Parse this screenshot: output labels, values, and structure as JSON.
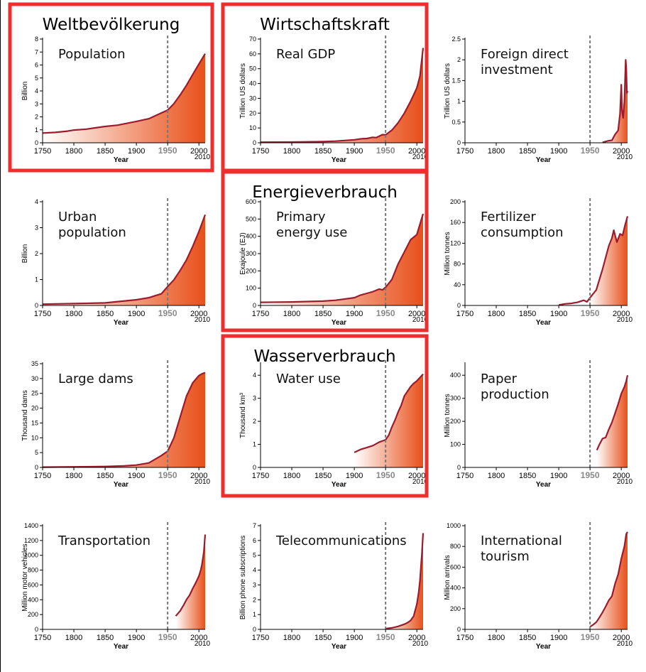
{
  "year_line": "1950",
  "end_label": "2010",
  "x_title": "Year",
  "x_ticks": [
    "1750",
    "1800",
    "1850",
    "1900",
    "1950",
    "2000"
  ],
  "colors": {
    "line": "#9b1c2c",
    "fill_dark": "#e8501a",
    "fill_light": "#ffffff",
    "highlight": "#ef2d2d",
    "dash": "#777777"
  },
  "highlights": [
    {
      "title": "Weltbevölkerung",
      "covers": [
        0
      ]
    },
    {
      "title": "Wirtschaftskraft",
      "covers": [
        1
      ]
    },
    {
      "title": "Energieverbrauch",
      "covers": [
        4
      ]
    },
    {
      "title": "Wasserverbrauch",
      "covers": [
        7
      ]
    }
  ],
  "chart_data": [
    {
      "type": "area",
      "title": [
        "Population"
      ],
      "ylabel": "Billion",
      "ylim": [
        0,
        8
      ],
      "yticks": [
        0,
        1,
        2,
        3,
        4,
        5,
        6,
        7,
        8
      ],
      "x": [
        1750,
        1770,
        1790,
        1800,
        1820,
        1850,
        1870,
        1900,
        1920,
        1940,
        1950,
        1960,
        1970,
        1980,
        1990,
        2000,
        2010
      ],
      "y": [
        0.75,
        0.8,
        0.9,
        0.98,
        1.05,
        1.26,
        1.36,
        1.65,
        1.86,
        2.3,
        2.52,
        3.02,
        3.69,
        4.43,
        5.26,
        6.07,
        6.87
      ],
      "fill_from": 1750
    },
    {
      "type": "area",
      "title": [
        "Real GDP"
      ],
      "ylabel": "Trillion US dollars",
      "ylim": [
        0,
        70
      ],
      "yticks": [
        0,
        10,
        20,
        30,
        40,
        50,
        60,
        70
      ],
      "x": [
        1750,
        1800,
        1850,
        1870,
        1900,
        1913,
        1920,
        1929,
        1935,
        1940,
        1945,
        1950,
        1960,
        1970,
        1980,
        1990,
        2000,
        2005,
        2010
      ],
      "y": [
        0.4,
        0.5,
        0.8,
        1.1,
        2.0,
        2.8,
        2.9,
        3.7,
        3.5,
        4.5,
        5.5,
        5.3,
        8.5,
        13.5,
        20,
        28,
        37,
        45,
        64
      ],
      "fill_from": 1750
    },
    {
      "type": "area",
      "title": [
        "Foreign direct",
        "investment"
      ],
      "ylabel": "Trillion US dollars",
      "ylim": [
        0,
        2.5
      ],
      "yticks": [
        0,
        0.5,
        1,
        1.5,
        2,
        2.5
      ],
      "x": [
        1970,
        1975,
        1980,
        1985,
        1990,
        1995,
        1998,
        2000,
        2001,
        2003,
        2005,
        2007,
        2008,
        2009,
        2010
      ],
      "y": [
        0.01,
        0.03,
        0.05,
        0.06,
        0.2,
        0.3,
        0.7,
        1.4,
        0.8,
        0.6,
        1.0,
        2.0,
        1.8,
        1.2,
        1.25
      ],
      "fill_from": 1950
    },
    {
      "type": "area",
      "title": [
        "Urban",
        "population"
      ],
      "ylabel": "Billion",
      "ylim": [
        0,
        4
      ],
      "yticks": [
        0,
        1,
        2,
        3,
        4
      ],
      "x": [
        1750,
        1800,
        1850,
        1900,
        1920,
        1940,
        1950,
        1960,
        1970,
        1980,
        1990,
        2000,
        2010
      ],
      "y": [
        0.05,
        0.07,
        0.1,
        0.22,
        0.3,
        0.45,
        0.73,
        0.99,
        1.35,
        1.75,
        2.27,
        2.85,
        3.5
      ],
      "fill_from": 1750
    },
    {
      "type": "area",
      "title": [
        "Primary",
        "energy use"
      ],
      "ylabel": "Exajoule (EJ)",
      "ylim": [
        0,
        600
      ],
      "yticks": [
        0,
        100,
        200,
        300,
        400,
        500,
        600
      ],
      "x": [
        1750,
        1800,
        1850,
        1870,
        1900,
        1910,
        1920,
        1930,
        1940,
        1945,
        1950,
        1960,
        1970,
        1980,
        1990,
        2000,
        2010
      ],
      "y": [
        18,
        20,
        25,
        30,
        45,
        60,
        70,
        80,
        95,
        90,
        105,
        150,
        240,
        310,
        380,
        410,
        530
      ],
      "fill_from": 1750
    },
    {
      "type": "area",
      "title": [
        "Fertilizer",
        "consumption"
      ],
      "ylabel": "Million tonnes",
      "ylim": [
        0,
        200
      ],
      "yticks": [
        0,
        40,
        80,
        120,
        160,
        200
      ],
      "x": [
        1900,
        1910,
        1920,
        1930,
        1940,
        1945,
        1950,
        1960,
        1970,
        1980,
        1985,
        1988,
        1993,
        1998,
        2002,
        2006,
        2010
      ],
      "y": [
        1,
        3,
        4,
        6,
        10,
        7,
        15,
        30,
        70,
        115,
        130,
        145,
        122,
        138,
        135,
        155,
        172
      ],
      "fill_from": 1950
    },
    {
      "type": "area",
      "title": [
        "Large dams"
      ],
      "ylabel": "Thousand dams",
      "ylim": [
        0,
        35
      ],
      "yticks": [
        0,
        5,
        10,
        15,
        20,
        25,
        30,
        35
      ],
      "x": [
        1750,
        1800,
        1850,
        1880,
        1900,
        1920,
        1940,
        1950,
        1960,
        1970,
        1980,
        1990,
        2000,
        2005,
        2010
      ],
      "y": [
        0.1,
        0.2,
        0.3,
        0.5,
        0.8,
        1.5,
        4.0,
        5.5,
        10,
        17,
        24,
        28.5,
        31,
        31.6,
        32
      ],
      "fill_from": 1750
    },
    {
      "type": "area",
      "title": [
        "Water use"
      ],
      "ylabel": "Thousand km³",
      "ylim": [
        0,
        4.5
      ],
      "yticks": [
        0,
        1,
        2,
        3,
        4
      ],
      "x": [
        1900,
        1910,
        1920,
        1930,
        1940,
        1950,
        1955,
        1960,
        1965,
        1970,
        1975,
        1980,
        1985,
        1990,
        1995,
        2000,
        2005,
        2010
      ],
      "y": [
        0.65,
        0.78,
        0.86,
        0.95,
        1.1,
        1.2,
        1.4,
        1.75,
        2.05,
        2.4,
        2.7,
        3.1,
        3.3,
        3.5,
        3.65,
        3.75,
        3.9,
        4.05
      ],
      "fill_from": 1900
    },
    {
      "type": "area",
      "title": [
        "Paper",
        "production"
      ],
      "ylabel": "Million tonnes",
      "ylim": [
        0,
        450
      ],
      "yticks": [
        0,
        100,
        200,
        300,
        400
      ],
      "x": [
        1961,
        1965,
        1970,
        1975,
        1980,
        1985,
        1990,
        1995,
        2000,
        2005,
        2008,
        2010
      ],
      "y": [
        75,
        100,
        125,
        130,
        165,
        195,
        235,
        275,
        320,
        350,
        375,
        400
      ],
      "fill_from": 1950
    },
    {
      "type": "area",
      "title": [
        "Transportation"
      ],
      "ylabel": "Million motor vehicles",
      "ylim": [
        0,
        1400
      ],
      "yticks": [
        0,
        200,
        400,
        600,
        800,
        1000,
        1200,
        1400
      ],
      "x": [
        1963,
        1970,
        1975,
        1980,
        1985,
        1990,
        1995,
        2000,
        2003,
        2005,
        2008,
        2010
      ],
      "y": [
        180,
        250,
        320,
        400,
        460,
        550,
        630,
        720,
        800,
        880,
        1050,
        1280
      ],
      "fill_from": 1950
    },
    {
      "type": "area",
      "title": [
        "Telecommunications"
      ],
      "ylabel": "Billion phone subscriptions",
      "ylim": [
        0,
        7
      ],
      "yticks": [
        0,
        1,
        2,
        3,
        4,
        5,
        6,
        7
      ],
      "x": [
        1950,
        1960,
        1970,
        1980,
        1985,
        1990,
        1995,
        2000,
        2003,
        2005,
        2007,
        2008,
        2010
      ],
      "y": [
        0.05,
        0.1,
        0.2,
        0.35,
        0.45,
        0.6,
        0.9,
        1.7,
        2.5,
        3.3,
        4.5,
        5.0,
        6.5
      ],
      "fill_from": 1950
    },
    {
      "type": "area",
      "title": [
        "International",
        "tourism"
      ],
      "ylabel": "Million arrivals",
      "ylim": [
        0,
        1000
      ],
      "yticks": [
        0,
        200,
        400,
        600,
        800,
        1000
      ],
      "x": [
        1950,
        1955,
        1960,
        1965,
        1970,
        1975,
        1980,
        1985,
        1990,
        1995,
        2000,
        2005,
        2008,
        2010
      ],
      "y": [
        25,
        45,
        70,
        115,
        165,
        220,
        280,
        320,
        440,
        530,
        680,
        800,
        920,
        940
      ],
      "fill_from": 1950
    }
  ]
}
